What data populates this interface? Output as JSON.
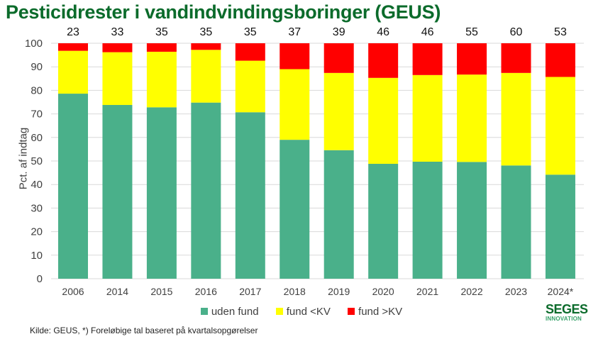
{
  "chart_data": {
    "type": "bar",
    "stacked": true,
    "title": "Pesticidrester i vandindvindingsboringer (GEUS)",
    "ylabel": "Pct. af indtag",
    "xlabel": "",
    "ylim": [
      0,
      100
    ],
    "yticks": [
      0,
      10,
      20,
      30,
      40,
      50,
      60,
      70,
      80,
      90,
      100
    ],
    "grid": true,
    "legend_position": "bottom",
    "categories": [
      "2006",
      "2014",
      "2015",
      "2016",
      "2017",
      "2018",
      "2019",
      "2020",
      "2021",
      "2022",
      "2023",
      "2024*"
    ],
    "top_labels": [
      "23",
      "33",
      "35",
      "35",
      "35",
      "37",
      "39",
      "46",
      "46",
      "55",
      "60",
      "53"
    ],
    "series": [
      {
        "name": "uden fund",
        "color": "#4ab08a",
        "values": [
          78.6,
          73.8,
          72.8,
          74.8,
          70.7,
          59.0,
          54.6,
          48.8,
          49.7,
          49.6,
          48.1,
          44.2
        ]
      },
      {
        "name": "fund <KV",
        "color": "#ffff00",
        "values": [
          18.2,
          22.4,
          23.6,
          22.4,
          21.9,
          30.0,
          32.8,
          36.5,
          36.8,
          37.1,
          39.3,
          41.5
        ]
      },
      {
        "name": "fund >KV",
        "color": "#ff0000",
        "values": [
          3.2,
          3.8,
          3.6,
          2.8,
          7.4,
          11.0,
          12.6,
          14.7,
          13.5,
          13.3,
          12.6,
          14.3
        ]
      }
    ]
  },
  "logo": {
    "line1": "SEGES",
    "line2": "INNOVATION"
  },
  "footer": "Kilde: GEUS, *) Foreløbige tal baseret på kvartalsopgørelser"
}
